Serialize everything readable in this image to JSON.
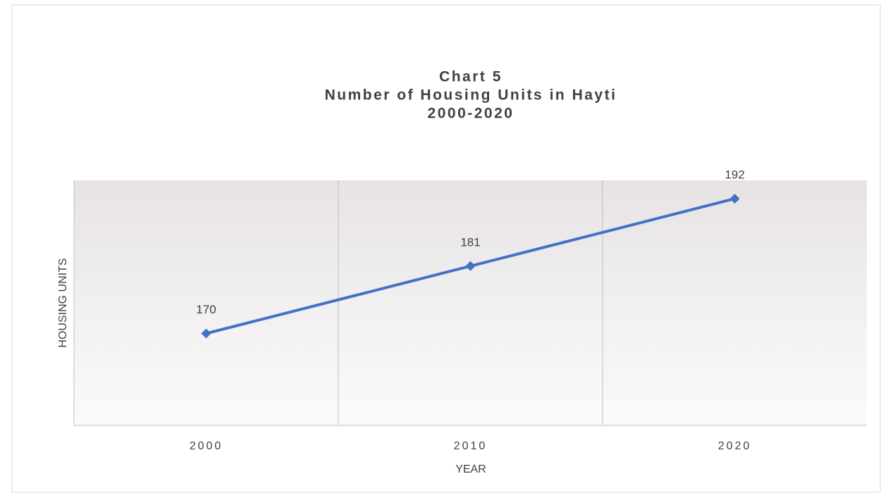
{
  "chart_data": {
    "type": "line",
    "title": [
      "Chart 5",
      "Number of Housing Units in Hayti",
      "2000-2020"
    ],
    "x_label": "YEAR",
    "y_label": "HOUSING UNITS",
    "categories": [
      "2000",
      "2010",
      "2020"
    ],
    "values": [
      170,
      181,
      192
    ],
    "color": "#4472c4",
    "ylim": [
      155,
      195
    ]
  }
}
